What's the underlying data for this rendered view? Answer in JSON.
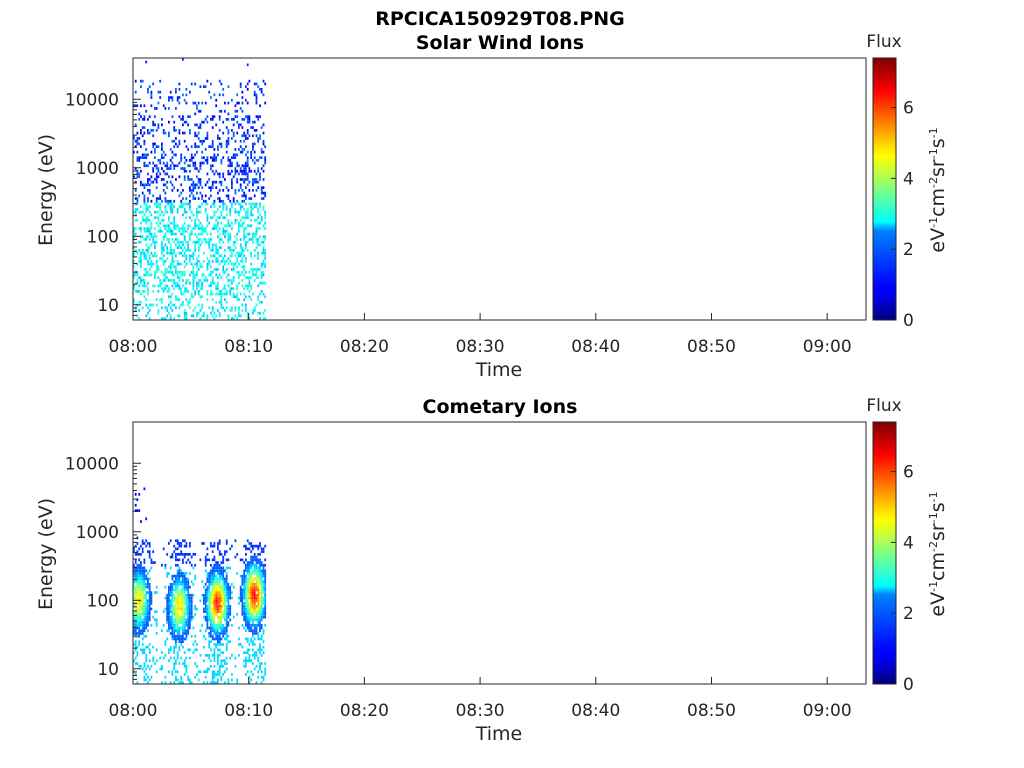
{
  "figure": {
    "title": "RPCICA150929T08.PNG"
  },
  "chart_data": [
    {
      "type": "heatmap",
      "title": "Solar Wind Ions",
      "xlabel": "Time",
      "ylabel": "Energy (eV)",
      "xlim": [
        "08:00",
        "09:03"
      ],
      "ylim": [
        6,
        40000
      ],
      "y_scale": "log",
      "x_ticks": [
        "08:00",
        "08:10",
        "08:20",
        "08:30",
        "08:40",
        "08:50",
        "09:00"
      ],
      "y_ticks": [
        "10",
        "100",
        "1000",
        "10000"
      ],
      "data_extent": {
        "x": [
          "08:00",
          "08:11.5"
        ],
        "energy_eV": [
          6,
          37000
        ]
      },
      "description_series": [
        {
          "name": "low energy band",
          "energy_range_eV": [
            6,
            300
          ],
          "flux_range": [
            2.2,
            3.2
          ]
        },
        {
          "name": "high energy band",
          "energy_range_eV": [
            300,
            20000
          ],
          "flux_range": [
            0.8,
            1.8
          ]
        }
      ],
      "colorbar": {
        "label": "Flux",
        "units": "eV-1cm-2sr-1s-1",
        "range": [
          0,
          7.4
        ],
        "ticks": [
          "0",
          "2",
          "4",
          "6"
        ],
        "colormap": "jet"
      }
    },
    {
      "type": "heatmap",
      "title": "Cometary Ions",
      "xlabel": "Time",
      "ylabel": "Energy (eV)",
      "xlim": [
        "08:00",
        "09:03"
      ],
      "ylim": [
        6,
        40000
      ],
      "y_scale": "log",
      "x_ticks": [
        "08:00",
        "08:10",
        "08:20",
        "08:30",
        "08:40",
        "08:50",
        "09:00"
      ],
      "y_ticks": [
        "10",
        "100",
        "1000",
        "10000"
      ],
      "data_extent": {
        "x": [
          "08:00",
          "08:11.5"
        ],
        "energy_eV": [
          6,
          4500
        ]
      },
      "bursts": [
        {
          "center_time": "08:00.5",
          "peak_energy_eV": 100,
          "peak_flux": 4.8
        },
        {
          "center_time": "08:04",
          "peak_energy_eV": 80,
          "peak_flux": 4.9
        },
        {
          "center_time": "08:07.3",
          "peak_energy_eV": 90,
          "peak_flux": 6.2
        },
        {
          "center_time": "08:10.5",
          "peak_energy_eV": 120,
          "peak_flux": 6.3
        }
      ],
      "colorbar": {
        "label": "Flux",
        "units": "eV-1cm-2sr-1s-1",
        "range": [
          0,
          7.4
        ],
        "ticks": [
          "0",
          "2",
          "4",
          "6"
        ],
        "colormap": "jet"
      }
    }
  ],
  "colors": {
    "axis": "#262626",
    "background": "#ffffff"
  }
}
